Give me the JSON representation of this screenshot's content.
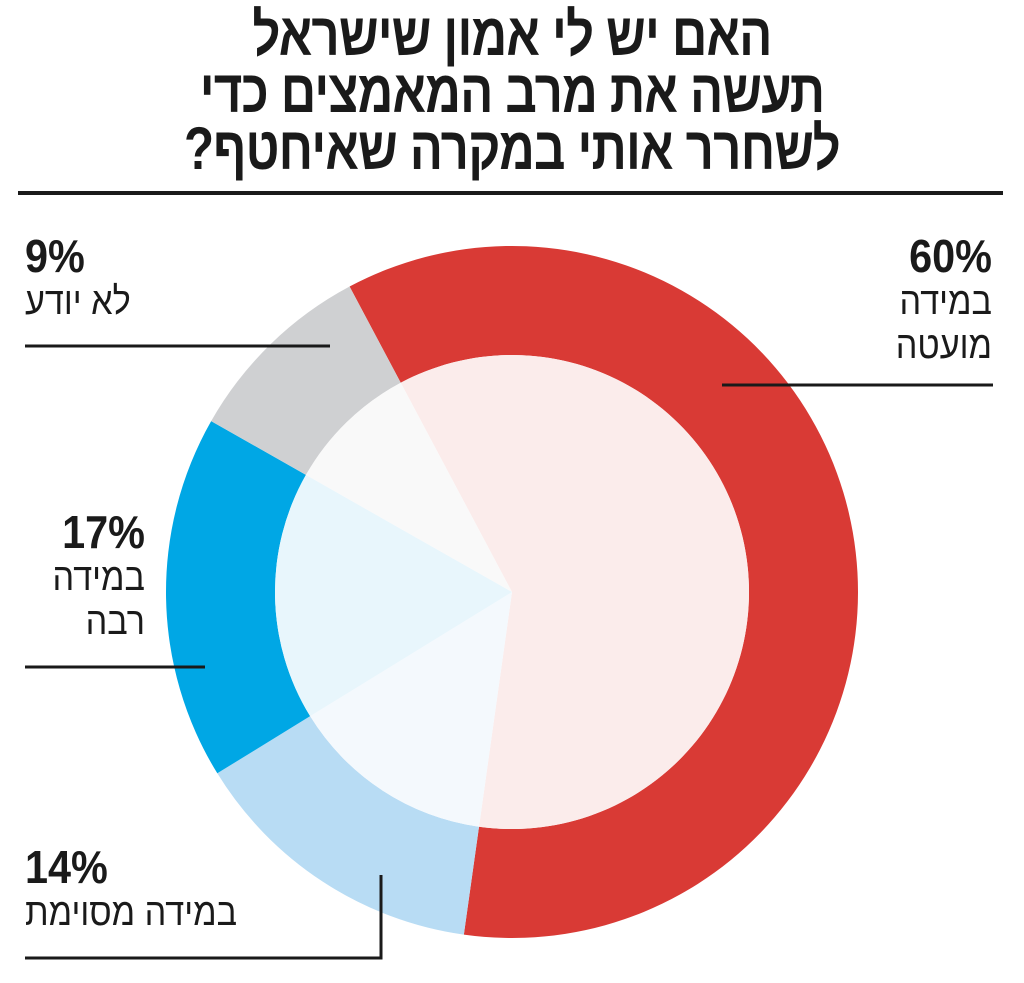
{
  "chart_data": {
    "type": "pie",
    "variant": "donut",
    "title_lines": [
      "האם יש לי אמון שישראל",
      "תעשה את מרב המאמצים כדי",
      "לשחרר אותי במקרה שאיחטף?"
    ],
    "start_angle_deg": 332,
    "slices": [
      {
        "label_lines": [
          "במידה",
          "מועטה"
        ],
        "value": 60,
        "display": "60%",
        "color": "#d93a35",
        "inner_color": "#fbeceb"
      },
      {
        "label_lines": [
          "במידה מסוימת"
        ],
        "value": 14,
        "display": "14%",
        "color": "#b8dcf4",
        "inner_color": "#f4f9fd"
      },
      {
        "label_lines": [
          "במידה",
          "רבה"
        ],
        "value": 17,
        "display": "17%",
        "color": "#00a7e5",
        "inner_color": "#e8f6fc"
      },
      {
        "label_lines": [
          "לא יודע"
        ],
        "value": 9,
        "display": "9%",
        "color": "#cfd0d2",
        "inner_color": "#f9f9f9"
      }
    ]
  }
}
